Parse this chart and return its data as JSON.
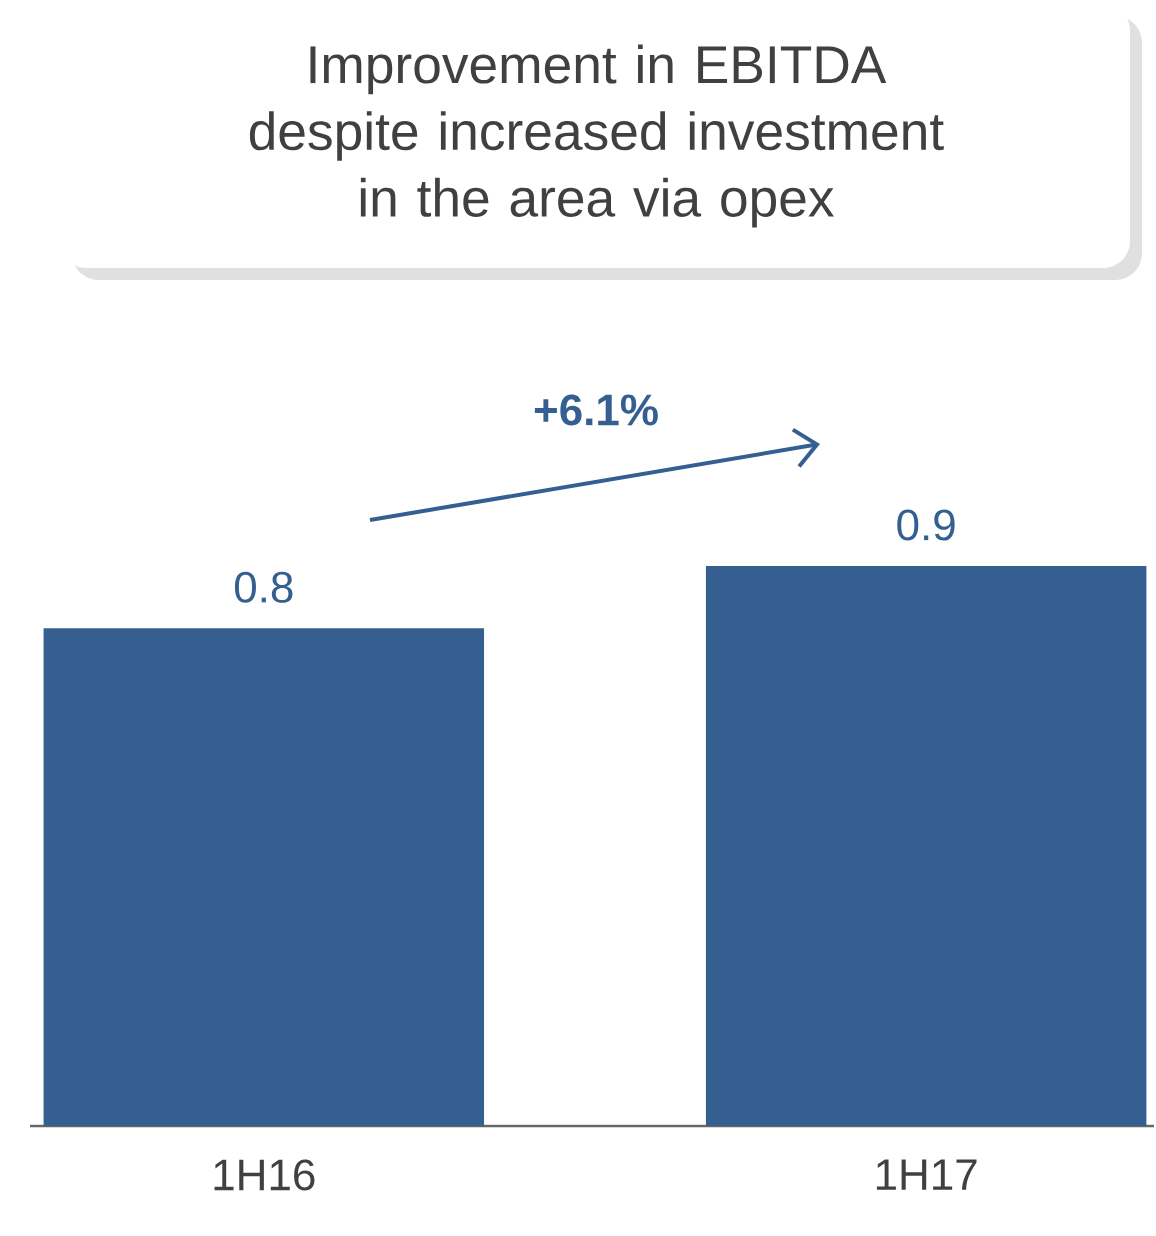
{
  "chart_data": {
    "type": "bar",
    "title": "Improvement in EBITDA despite increased investment in the area via opex",
    "categories": [
      "1H16",
      "1H17"
    ],
    "values": [
      0.8,
      0.9
    ],
    "color": "#355f91",
    "data_labels": true,
    "annotations": [
      "+6.1%"
    ]
  }
}
